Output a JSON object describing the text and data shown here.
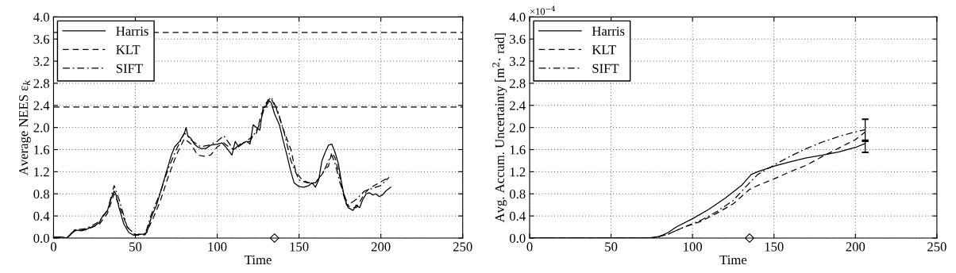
{
  "chart_data": [
    {
      "type": "line",
      "xlabel": "Time",
      "ylabel": "Average NEES ε$_{k}$",
      "xlim": [
        0,
        250
      ],
      "ylim": [
        0,
        4
      ],
      "xticks": [
        0,
        50,
        100,
        150,
        200,
        250
      ],
      "yticks": [
        {
          "value": 0,
          "label": "0.0"
        },
        0.4,
        0.8,
        1.2,
        1.6,
        {
          "value": 2,
          "label": "2.0"
        },
        2.4,
        2.8,
        3.2,
        3.6,
        {
          "value": 4,
          "label": "4.0"
        }
      ],
      "grid": true,
      "legend": "top left",
      "marker": "none",
      "ref_lines": [
        {
          "axis": "y",
          "value": 3.72,
          "line_style": "dashed",
          "color": "#000000"
        },
        {
          "axis": "y",
          "value": 2.37,
          "line_style": "dashed",
          "color": "#000000"
        }
      ],
      "series": [
        {
          "name": "Harris",
          "color": "#000000",
          "line_style": "solid",
          "x": [
            0,
            5,
            8,
            10,
            13,
            17,
            20,
            25,
            28,
            30,
            33,
            35,
            37,
            38,
            40,
            43,
            46,
            49,
            52,
            55,
            57,
            60,
            63,
            66,
            70,
            72,
            74,
            77,
            80,
            81,
            82,
            84,
            86,
            88,
            90,
            93,
            96,
            100,
            103,
            106,
            109,
            111,
            113,
            116,
            118,
            120,
            122,
            124,
            126,
            128,
            130,
            131,
            133,
            135,
            138,
            140,
            143,
            145,
            147,
            150,
            153,
            156,
            158,
            160,
            162,
            164,
            166,
            168,
            170,
            172,
            174,
            176,
            178,
            180,
            183,
            185,
            187,
            189,
            191,
            193,
            195,
            197,
            199,
            201,
            203,
            206
          ],
          "values": [
            0.02,
            0.02,
            0.0,
            0.05,
            0.15,
            0.13,
            0.16,
            0.22,
            0.28,
            0.4,
            0.5,
            0.7,
            0.85,
            0.8,
            0.55,
            0.25,
            0.1,
            0.05,
            0.07,
            0.07,
            0.1,
            0.4,
            0.6,
            0.9,
            1.3,
            1.5,
            1.65,
            1.75,
            1.9,
            2.0,
            1.85,
            1.8,
            1.7,
            1.65,
            1.62,
            1.62,
            1.68,
            1.7,
            1.72,
            1.62,
            1.5,
            1.75,
            1.65,
            1.72,
            1.75,
            1.7,
            2.05,
            2.0,
            1.95,
            2.35,
            2.4,
            2.5,
            2.45,
            2.25,
            2.05,
            1.8,
            1.45,
            1.2,
            1.0,
            0.93,
            0.92,
            0.95,
            1.0,
            0.92,
            1.05,
            1.4,
            1.55,
            1.68,
            1.7,
            1.55,
            1.35,
            1.0,
            0.7,
            0.55,
            0.5,
            0.6,
            0.55,
            0.7,
            0.8,
            0.82,
            0.78,
            0.8,
            0.75,
            0.78,
            0.85,
            0.92
          ]
        },
        {
          "name": "KLT",
          "color": "#000000",
          "line_style": "dashed",
          "x": [
            0,
            8,
            13,
            20,
            28,
            33,
            37,
            40,
            45,
            50,
            56,
            60,
            65,
            70,
            75,
            80,
            84,
            88,
            92,
            96,
            100,
            104,
            107,
            110,
            115,
            120,
            124,
            127,
            130,
            133,
            136,
            140,
            145,
            148,
            152,
            156,
            160,
            164,
            166,
            168,
            170,
            172,
            175,
            177,
            179,
            182,
            185,
            188,
            190,
            193,
            196,
            199,
            202,
            205
          ],
          "values": [
            0.02,
            0.0,
            0.13,
            0.15,
            0.25,
            0.45,
            0.8,
            0.6,
            0.2,
            0.05,
            0.06,
            0.3,
            0.65,
            1.1,
            1.5,
            1.8,
            1.7,
            1.5,
            1.48,
            1.5,
            1.65,
            1.72,
            1.65,
            1.6,
            1.7,
            1.8,
            1.9,
            2.25,
            2.4,
            2.52,
            2.35,
            2.0,
            1.6,
            1.2,
            1.05,
            1.0,
            1.0,
            1.15,
            1.25,
            1.3,
            1.55,
            1.45,
            1.1,
            0.8,
            0.6,
            0.55,
            0.55,
            0.7,
            0.8,
            0.9,
            0.95,
            1.0,
            1.05,
            1.1
          ]
        },
        {
          "name": "SIFT",
          "color": "#000000",
          "line_style": "dashdot",
          "x": [
            0,
            8,
            13,
            20,
            28,
            33,
            37,
            40,
            45,
            50,
            56,
            60,
            65,
            70,
            75,
            80,
            85,
            90,
            95,
            100,
            104,
            110,
            115,
            120,
            125,
            130,
            133,
            137,
            141,
            145,
            150,
            155,
            160,
            165,
            168,
            170,
            172,
            175,
            178,
            180,
            185,
            190,
            195,
            200,
            205
          ],
          "values": [
            0.02,
            0.0,
            0.15,
            0.17,
            0.3,
            0.5,
            0.95,
            0.7,
            0.2,
            0.06,
            0.07,
            0.45,
            0.8,
            1.25,
            1.6,
            1.9,
            1.75,
            1.65,
            1.68,
            1.75,
            1.85,
            1.6,
            1.72,
            1.75,
            2.0,
            2.45,
            2.55,
            2.3,
            1.9,
            1.4,
            1.05,
            1.0,
            1.0,
            1.2,
            1.4,
            1.5,
            1.35,
            1.0,
            0.75,
            0.6,
            0.7,
            0.85,
            0.9,
            0.95,
            1.1
          ]
        },
        {
          "type": "scatter",
          "color": "#000000",
          "marker": "diamond",
          "x": [
            135
          ],
          "values": [
            0
          ]
        }
      ]
    },
    {
      "type": "line",
      "xlabel": "Time",
      "ylabel": "Avg. Accum. Uncertainty [m$^{2}$· rad]",
      "annotations": [
        "×10$^{−4}$"
      ],
      "xlim": [
        0,
        250
      ],
      "ylim": [
        0,
        4
      ],
      "xticks": [
        0,
        50,
        100,
        150,
        200,
        250
      ],
      "yticks": [
        {
          "value": 0,
          "label": "0.0"
        },
        0.4,
        0.8,
        1.2,
        1.6,
        {
          "value": 2,
          "label": "2.0"
        },
        2.4,
        2.8,
        3.2,
        3.6,
        {
          "value": 4,
          "label": "4.0"
        }
      ],
      "grid": true,
      "legend": "top left",
      "marker": "none",
      "series": [
        {
          "name": "Harris",
          "color": "#000000",
          "line_style": "solid",
          "x": [
            0,
            73,
            80,
            85,
            90,
            100,
            110,
            120,
            130,
            136,
            140,
            150,
            160,
            170,
            180,
            190,
            200,
            206
          ],
          "values": [
            0,
            0,
            0.03,
            0.1,
            0.2,
            0.35,
            0.52,
            0.72,
            0.95,
            1.15,
            1.2,
            1.3,
            1.38,
            1.45,
            1.5,
            1.56,
            1.64,
            1.71
          ],
          "errors": [
            null,
            null,
            null,
            null,
            null,
            null,
            null,
            null,
            null,
            null,
            null,
            null,
            null,
            null,
            null,
            null,
            null,
            [
              1.55,
              1.77
            ]
          ]
        },
        {
          "name": "KLT",
          "color": "#000000",
          "line_style": "dashed",
          "x": [
            0,
            75,
            85,
            95,
            105,
            115,
            125,
            135,
            140,
            150,
            160,
            170,
            180,
            190,
            200,
            206
          ],
          "values": [
            0,
            0,
            0.07,
            0.2,
            0.3,
            0.45,
            0.62,
            0.88,
            0.95,
            1.07,
            1.2,
            1.32,
            1.48,
            1.63,
            1.78,
            1.92
          ]
        },
        {
          "name": "SIFT",
          "color": "#000000",
          "line_style": "dashdot",
          "x": [
            0,
            75,
            85,
            95,
            105,
            115,
            125,
            135,
            140,
            150,
            160,
            170,
            180,
            190,
            200,
            206
          ],
          "values": [
            0,
            0,
            0.07,
            0.2,
            0.32,
            0.48,
            0.68,
            1.0,
            1.15,
            1.32,
            1.48,
            1.62,
            1.74,
            1.84,
            1.92,
            1.96
          ],
          "errors": [
            null,
            null,
            null,
            null,
            null,
            null,
            null,
            null,
            null,
            null,
            null,
            null,
            null,
            null,
            null,
            [
              1.75,
              2.15
            ]
          ]
        },
        {
          "type": "scatter",
          "color": "#000000",
          "marker": "diamond",
          "x": [
            135
          ],
          "values": [
            0
          ]
        }
      ]
    }
  ]
}
